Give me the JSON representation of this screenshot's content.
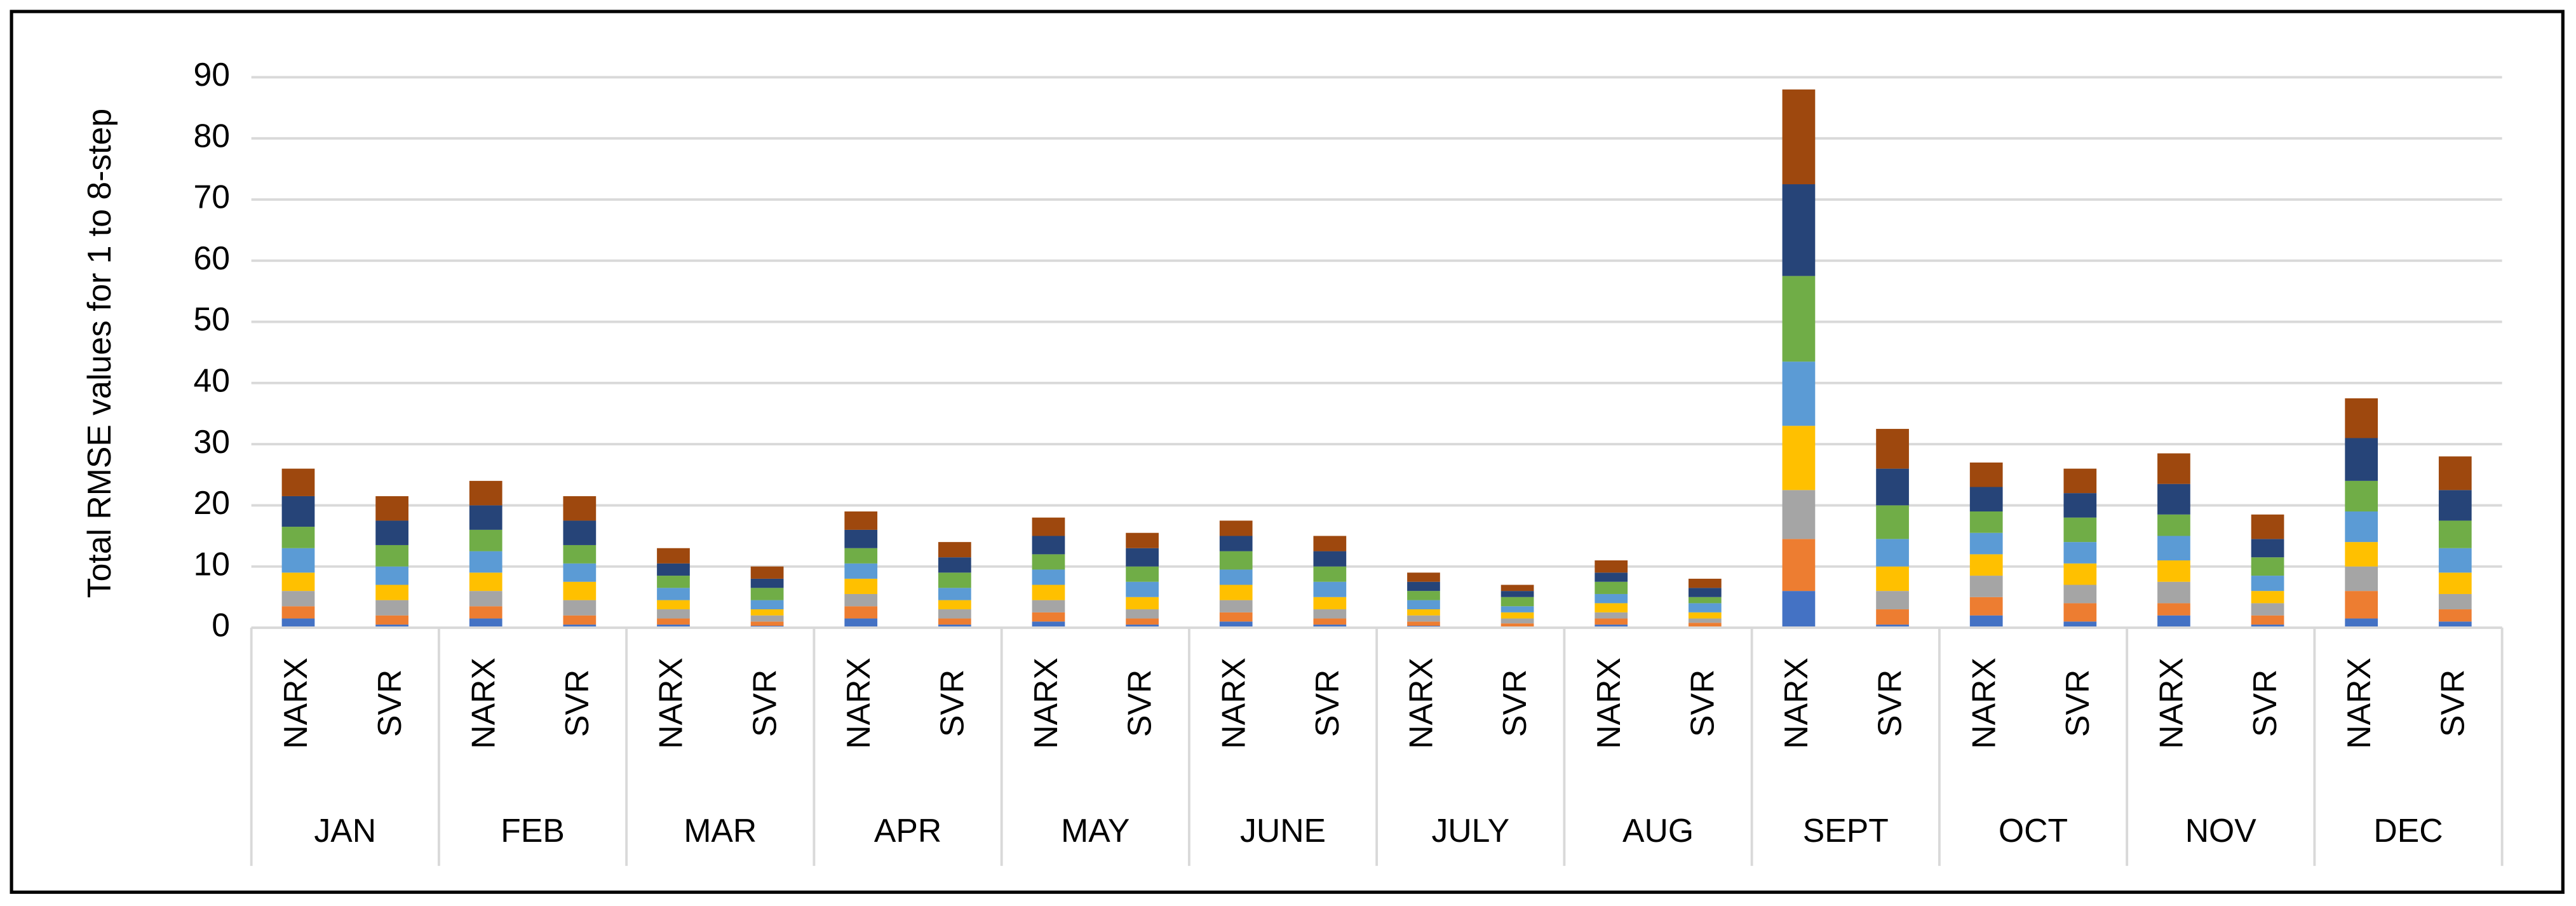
{
  "chart_data": {
    "type": "stacked_bar",
    "y_label": "Total RMSE values for 1 to 8-step",
    "categories": [
      "NARX",
      "SVR",
      "NARX",
      "SVR",
      "NARX",
      "SVR",
      "NARX",
      "SVR",
      "NARX",
      "SVR",
      "NARX",
      "SVR",
      "NARX",
      "SVR",
      "NARX",
      "SVR",
      "NARX",
      "SVR",
      "NARX",
      "SVR",
      "NARX",
      "SVR",
      "NARX",
      "SVR"
    ],
    "groups": [
      "JAN",
      "FEB",
      "MAR",
      "APR",
      "MAY",
      "JUNE",
      "JULY",
      "AUG",
      "SEPT",
      "OCT",
      "NOV",
      "DEC"
    ],
    "series": [
      {
        "color": "#4472c4",
        "values": [
          1.5,
          0.5,
          1.5,
          0.5,
          0.5,
          0.3,
          1.5,
          0.5,
          1,
          0.5,
          1,
          0.5,
          0.3,
          0.2,
          0.5,
          0.2,
          6,
          0.5,
          2,
          1,
          2,
          0.5,
          1.5,
          1
        ]
      },
      {
        "color": "#ed7d31",
        "values": [
          2,
          1.5,
          2,
          1.5,
          1,
          0.7,
          2,
          1,
          1.5,
          1,
          1.5,
          1,
          0.7,
          0.5,
          1,
          0.6,
          8.5,
          2.5,
          3,
          3,
          2,
          1.5,
          4.5,
          2
        ]
      },
      {
        "color": "#a5a5a5",
        "values": [
          2.5,
          2.5,
          2.5,
          2.5,
          1.5,
          1,
          2,
          1.5,
          2,
          1.5,
          2,
          1.5,
          1,
          0.8,
          1,
          0.7,
          8,
          3,
          3.5,
          3,
          3.5,
          2,
          4,
          2.5
        ]
      },
      {
        "color": "#ffc000",
        "values": [
          3,
          2.5,
          3,
          3,
          1.5,
          1,
          2.5,
          1.5,
          2.5,
          2,
          2.5,
          2,
          1,
          1,
          1.5,
          1,
          10.5,
          4,
          3.5,
          3.5,
          3.5,
          2,
          4,
          3.5
        ]
      },
      {
        "color": "#5b9bd5",
        "values": [
          4,
          3,
          3.5,
          3,
          2,
          1.5,
          2.5,
          2,
          2.5,
          2.5,
          2.5,
          2.5,
          1.5,
          1,
          1.5,
          1.5,
          10.5,
          4.5,
          3.5,
          3.5,
          4,
          2.5,
          5,
          4
        ]
      },
      {
        "color": "#70ad47",
        "values": [
          3.5,
          3.5,
          3.5,
          3,
          2,
          2,
          2.5,
          2.5,
          2.5,
          2.5,
          3,
          2.5,
          1.5,
          1.5,
          2,
          1,
          14,
          5.5,
          3.5,
          4,
          3.5,
          3,
          5,
          4.5
        ]
      },
      {
        "color": "#264478",
        "values": [
          5,
          4,
          4,
          4,
          2,
          1.5,
          3,
          2.5,
          3,
          3,
          2.5,
          2.5,
          1.5,
          1,
          1.5,
          1.5,
          15,
          6,
          4,
          4,
          5,
          3,
          7,
          5
        ]
      },
      {
        "color": "#9e480e",
        "values": [
          4.5,
          4,
          4,
          4,
          2.5,
          2,
          3,
          2.5,
          3,
          2.5,
          2.5,
          2.5,
          1.5,
          1,
          2,
          1.5,
          15.5,
          6.5,
          4,
          4,
          5,
          4,
          6.5,
          5.5
        ]
      }
    ],
    "ylim": [
      0,
      90
    ],
    "yticks": [
      0,
      10,
      20,
      30,
      40,
      50,
      60,
      70,
      80,
      90
    ],
    "grid": true
  }
}
